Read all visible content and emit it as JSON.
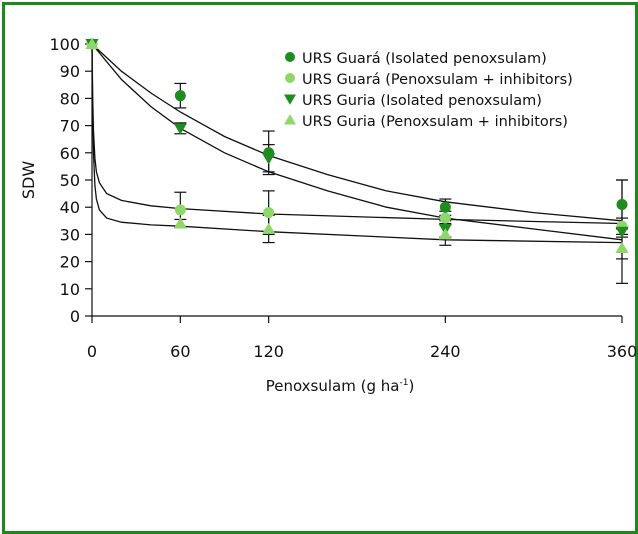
{
  "chart_data": {
    "type": "scatter",
    "xlabel": "Penoxsulam (g ha",
    "xlabel_sup": "-1",
    "xlabel_end": ")",
    "ylabel": "SDW",
    "xlim": [
      0,
      360
    ],
    "ylim": [
      0,
      100
    ],
    "x_ticks": [
      0,
      60,
      120,
      240,
      360
    ],
    "y_ticks": [
      0,
      10,
      20,
      30,
      40,
      50,
      60,
      70,
      80,
      90,
      100
    ],
    "legend_position": "top-right",
    "grid": false,
    "series": [
      {
        "name": "URS Guará (Isolated penoxsulam)",
        "marker": "circle",
        "color": "#1e8c1e",
        "points": [
          {
            "x": 0,
            "y": 100
          },
          {
            "x": 60,
            "y": 81,
            "err": 4.5
          },
          {
            "x": 120,
            "y": 60,
            "err": 8
          },
          {
            "x": 240,
            "y": 40,
            "err": 3
          },
          {
            "x": 360,
            "y": 41,
            "err": 9
          }
        ]
      },
      {
        "name": "URS Guará (Penoxsulam + inhibitors)",
        "marker": "circle",
        "color": "#8fd66b",
        "points": [
          {
            "x": 0,
            "y": 100
          },
          {
            "x": 60,
            "y": 39,
            "err": 6.5
          },
          {
            "x": 120,
            "y": 38,
            "err": 8
          },
          {
            "x": 240,
            "y": 36,
            "err": 2.5
          },
          {
            "x": 360,
            "y": 33,
            "err": 3
          }
        ]
      },
      {
        "name": "URS Guria (Isolated penoxsulam)",
        "marker": "triangle-down",
        "color": "#1e8c1e",
        "points": [
          {
            "x": 0,
            "y": 100
          },
          {
            "x": 60,
            "y": 69,
            "err": 2
          },
          {
            "x": 120,
            "y": 58,
            "err": 5
          },
          {
            "x": 240,
            "y": 32,
            "err": 3
          },
          {
            "x": 360,
            "y": 31,
            "err": 19
          }
        ]
      },
      {
        "name": "URS Guria (Penoxsulam + inhibitors)",
        "marker": "triangle-up",
        "color": "#8fd66b",
        "points": [
          {
            "x": 0,
            "y": 100
          },
          {
            "x": 60,
            "y": 34,
            "err": 1.5
          },
          {
            "x": 120,
            "y": 32,
            "err": 5
          },
          {
            "x": 240,
            "y": 30,
            "err": 4
          },
          {
            "x": 360,
            "y": 25,
            "err": 4
          }
        ]
      }
    ],
    "fitted_curves": [
      {
        "points": [
          [
            0,
            100
          ],
          [
            20,
            90
          ],
          [
            40,
            82
          ],
          [
            60,
            75
          ],
          [
            90,
            66
          ],
          [
            120,
            59
          ],
          [
            160,
            52
          ],
          [
            200,
            46
          ],
          [
            240,
            42
          ],
          [
            300,
            38
          ],
          [
            360,
            35
          ]
        ]
      },
      {
        "points": [
          [
            0,
            100
          ],
          [
            20,
            87
          ],
          [
            40,
            77
          ],
          [
            60,
            69
          ],
          [
            90,
            60
          ],
          [
            120,
            53
          ],
          [
            160,
            46
          ],
          [
            200,
            40
          ],
          [
            240,
            36
          ],
          [
            300,
            32
          ],
          [
            360,
            28
          ]
        ]
      },
      {
        "points": [
          [
            0,
            100
          ],
          [
            0.5,
            80
          ],
          [
            1,
            68
          ],
          [
            2,
            58
          ],
          [
            3,
            53
          ],
          [
            5,
            49
          ],
          [
            10,
            45
          ],
          [
            20,
            42.5
          ],
          [
            40,
            40.5
          ],
          [
            60,
            39.5
          ],
          [
            120,
            37.5
          ],
          [
            240,
            35.5
          ],
          [
            360,
            34
          ]
        ]
      },
      {
        "points": [
          [
            0,
            100
          ],
          [
            0.5,
            75
          ],
          [
            1,
            60
          ],
          [
            2,
            48
          ],
          [
            3,
            43
          ],
          [
            5,
            39
          ],
          [
            10,
            36
          ],
          [
            20,
            34.5
          ],
          [
            40,
            33.5
          ],
          [
            60,
            33
          ],
          [
            120,
            31
          ],
          [
            240,
            28
          ],
          [
            360,
            27
          ]
        ]
      }
    ]
  }
}
